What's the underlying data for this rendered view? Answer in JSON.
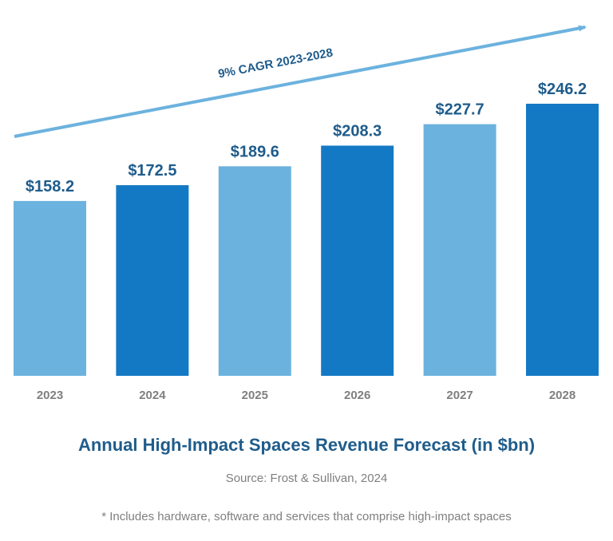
{
  "colors": {
    "bar_light": "#6cb2de",
    "bar_dark": "#1479c4",
    "value_label": "#1f5c8b",
    "arrow": "#6cb2de",
    "title": "#1f5c8b",
    "muted_text": "#7f7f7f"
  },
  "chart_data": {
    "type": "bar",
    "title": "Annual High-Impact Spaces Revenue Forecast (in $bn)",
    "categories": [
      "2023",
      "2024",
      "2025",
      "2026",
      "2027",
      "2028"
    ],
    "values": [
      158.2,
      172.5,
      189.6,
      208.3,
      227.7,
      246.2
    ],
    "value_labels": [
      "$158.2",
      "$172.5",
      "$189.6",
      "$208.3",
      "$227.7",
      "$246.2"
    ],
    "bar_color_pattern": [
      "light",
      "dark",
      "light",
      "dark",
      "light",
      "dark"
    ],
    "xlabel": "",
    "ylabel": "",
    "ylim": [
      0,
      246.2
    ],
    "grid": false,
    "annotation": "9% CAGR 2023-2028"
  },
  "source": "Source: Frost & Sullivan, 2024",
  "footnote": "* Includes hardware, software and services that comprise high-impact spaces"
}
